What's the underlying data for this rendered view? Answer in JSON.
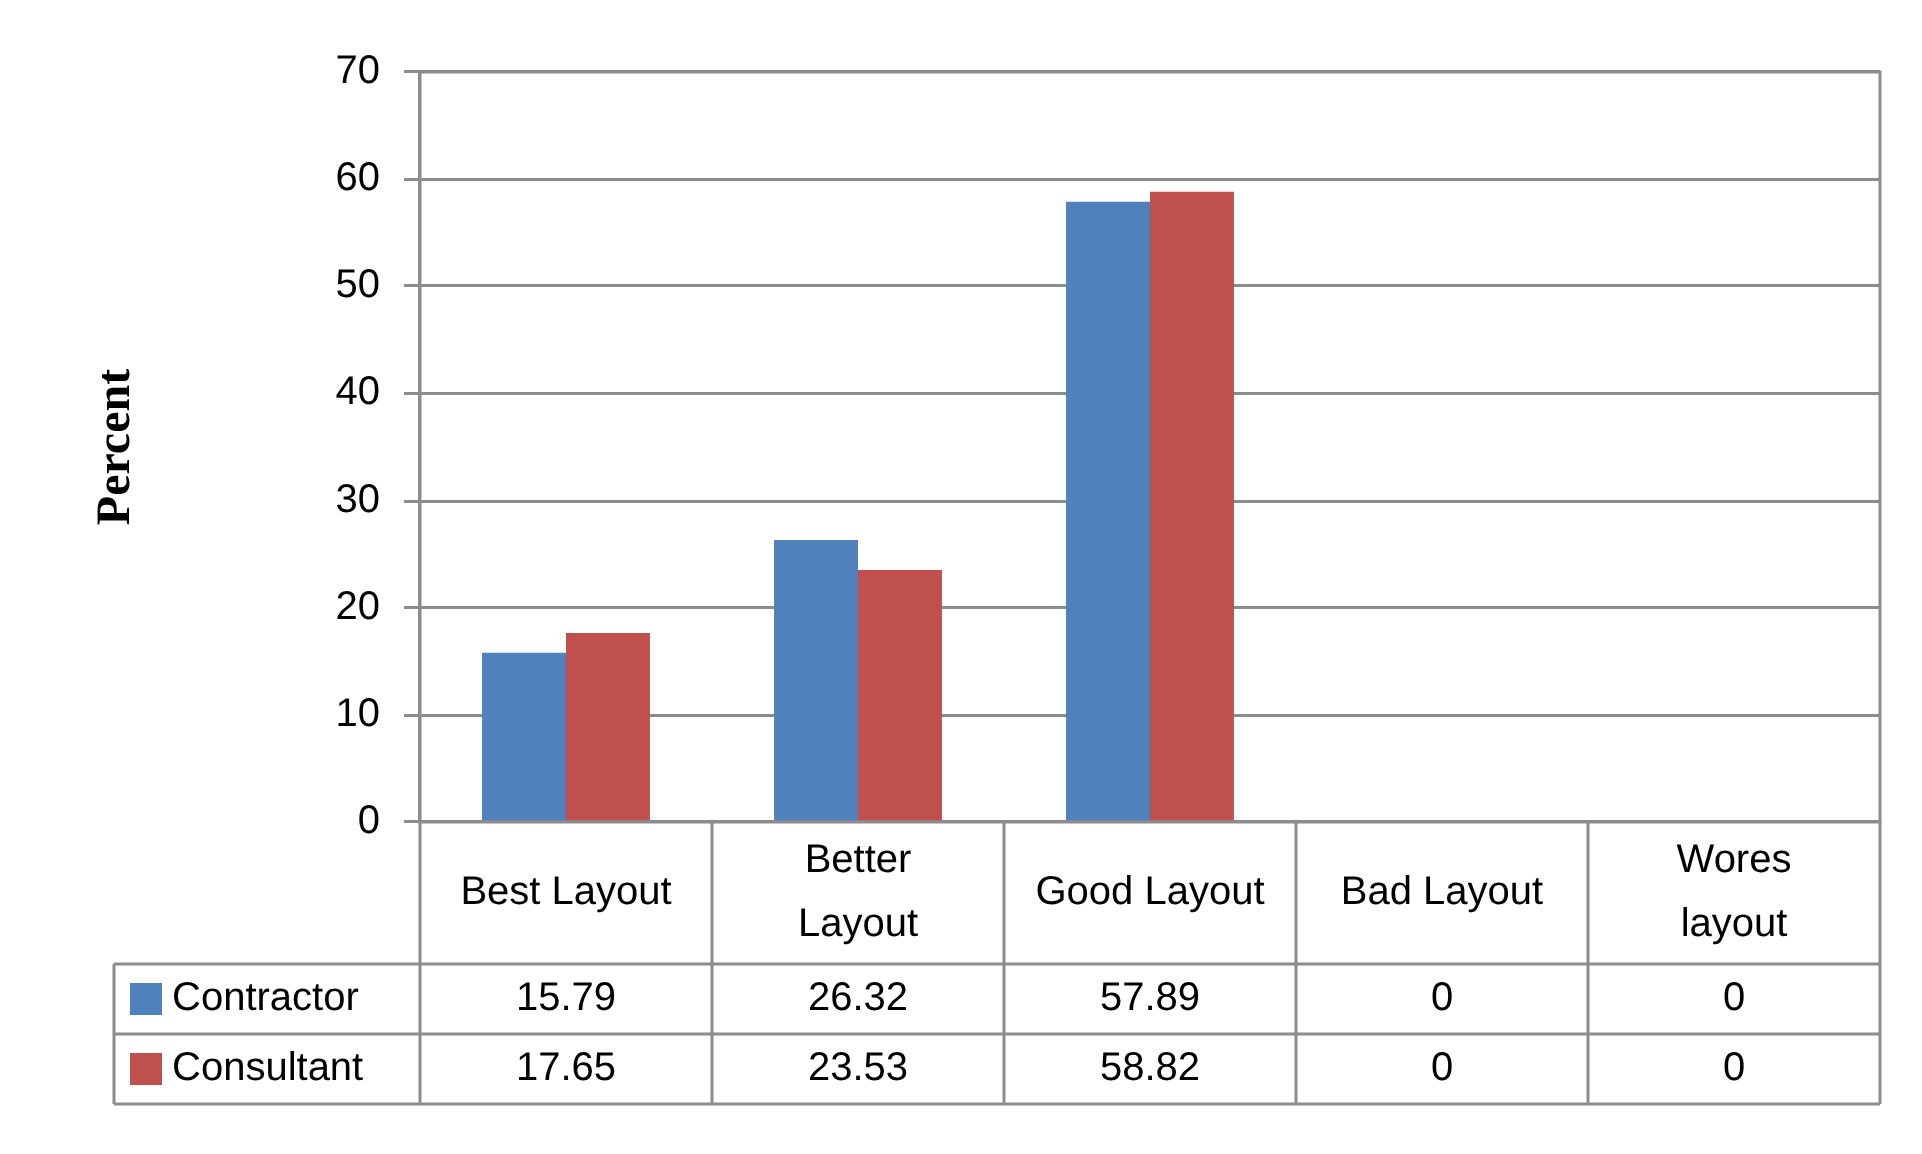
{
  "chart_data": {
    "type": "bar",
    "ylabel": "Percent",
    "categories": [
      "Best Layout",
      "Better Layout",
      "Good Layout",
      "Bad Layout",
      "Wores layout"
    ],
    "series": [
      {
        "name": "Contractor",
        "color": "#4f81bd",
        "values": [
          15.79,
          26.32,
          57.89,
          0,
          0
        ]
      },
      {
        "name": "Consultant",
        "color": "#c0504d",
        "values": [
          17.65,
          23.53,
          58.82,
          0,
          0
        ]
      }
    ],
    "ylim": [
      0,
      70
    ],
    "yticks": [
      0,
      10,
      20,
      30,
      40,
      50,
      60,
      70
    ],
    "grid": "y",
    "legend": "bottom",
    "data_labels": true
  }
}
